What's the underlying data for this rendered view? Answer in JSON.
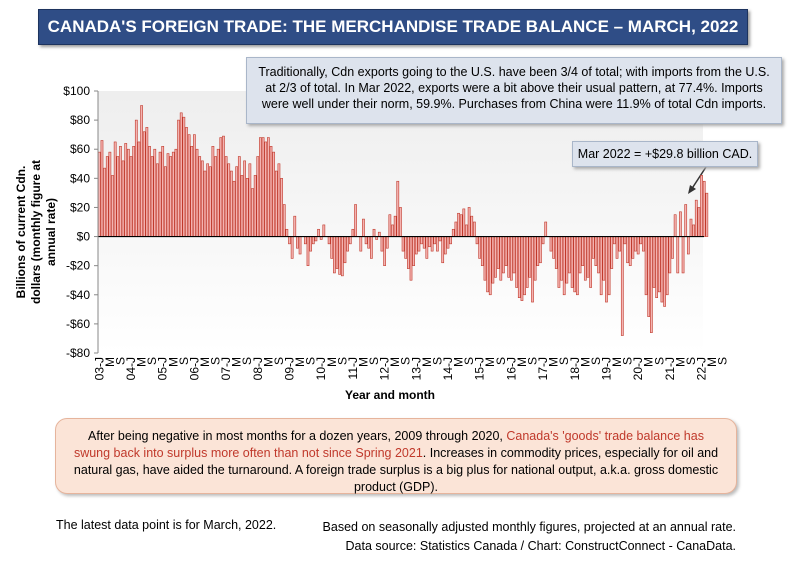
{
  "title": "CANADA'S FOREIGN TRADE: THE MERCHANDISE TRADE BALANCE – MARCH, 2022",
  "annotation": "Traditionally, Cdn exports going to the U.S. have been 3/4 of total; with imports from the U.S. at 2/3 of total. In Mar 2022, exports were a bit above their usual pattern, at 77.4%. Imports were well under their norm, 59.9%. Purchases from China were 11.9% of total Cdn imports.",
  "callout": "Mar 2022 = +$29.8 billion CAD.",
  "chart_data": {
    "type": "bar",
    "ylabel": "Billions of current Cdn. dollars (monthly figure at annual rate)",
    "xlabel": "Year and month",
    "categories": [
      "03-J",
      null,
      null,
      null,
      "M",
      null,
      null,
      null,
      "S",
      null,
      null,
      null,
      "04-J",
      null,
      null,
      null,
      "M",
      null,
      null,
      null,
      "S",
      null,
      null,
      null,
      "05-J",
      null,
      null,
      null,
      "M",
      null,
      null,
      null,
      "S",
      null,
      null,
      null,
      "06-J",
      null,
      null,
      null,
      "M",
      null,
      null,
      null,
      "S",
      null,
      null,
      null,
      "07-J",
      null,
      null,
      null,
      "M",
      null,
      null,
      null,
      "S",
      null,
      null,
      null,
      "08-J",
      null,
      null,
      null,
      "M",
      null,
      null,
      null,
      "S",
      null,
      null,
      null,
      "09-J",
      null,
      null,
      null,
      "M",
      null,
      null,
      null,
      "S",
      null,
      null,
      null,
      "10-J",
      null,
      null,
      null,
      "M",
      null,
      null,
      null,
      "S",
      null,
      null,
      null,
      "11-J",
      null,
      null,
      null,
      "M",
      null,
      null,
      null,
      "S",
      null,
      null,
      null,
      "12-J",
      null,
      null,
      null,
      "M",
      null,
      null,
      null,
      "S",
      null,
      null,
      null,
      "13-J",
      null,
      null,
      null,
      "M",
      null,
      null,
      null,
      "S",
      null,
      null,
      null,
      "14-J",
      null,
      null,
      null,
      "M",
      null,
      null,
      null,
      "S",
      null,
      null,
      null,
      "15-J",
      null,
      null,
      null,
      "M",
      null,
      null,
      null,
      "S",
      null,
      null,
      null,
      "16-J",
      null,
      null,
      null,
      "M",
      null,
      null,
      null,
      "S",
      null,
      null,
      null,
      "17-J",
      null,
      null,
      null,
      "M",
      null,
      null,
      null,
      "S",
      null,
      null,
      null,
      "18-J",
      null,
      null,
      null,
      "M",
      null,
      null,
      null,
      "S",
      null,
      null,
      null,
      "19-J",
      null,
      null,
      null,
      "M",
      null,
      null,
      null,
      "S",
      null,
      null,
      null,
      "20-J",
      null,
      null,
      null,
      "M",
      null,
      null,
      null,
      "S",
      null,
      null,
      null,
      "21-J",
      null,
      null,
      null,
      "M",
      null,
      null,
      null,
      "S",
      null,
      null,
      null,
      "22-J",
      null,
      null,
      null,
      "M",
      null,
      null,
      null,
      "S"
    ],
    "values": [
      58,
      66,
      47,
      55,
      58,
      42,
      65,
      55,
      62,
      52,
      64,
      60,
      55,
      62,
      80,
      65,
      90,
      72,
      75,
      62,
      55,
      60,
      50,
      58,
      62,
      48,
      57,
      55,
      58,
      60,
      80,
      85,
      82,
      75,
      70,
      62,
      70,
      60,
      55,
      52,
      45,
      50,
      48,
      62,
      55,
      60,
      68,
      69,
      55,
      50,
      45,
      38,
      48,
      55,
      42,
      52,
      40,
      50,
      33,
      42,
      55,
      68,
      68,
      65,
      68,
      62,
      58,
      45,
      50,
      40,
      22,
      5,
      -5,
      -15,
      14,
      -8,
      -12,
      0,
      -5,
      -20,
      -10,
      -5,
      -3,
      5,
      -2,
      8,
      0,
      -5,
      -15,
      -25,
      -22,
      -26,
      -27,
      -18,
      -10,
      -5,
      5,
      22,
      0,
      -10,
      12,
      -5,
      -8,
      -15,
      5,
      -2,
      3,
      -10,
      -20,
      -8,
      15,
      8,
      14,
      38,
      20,
      -10,
      -15,
      -22,
      -30,
      -20,
      -12,
      -10,
      -5,
      -8,
      -15,
      -7,
      -10,
      -5,
      -10,
      -3,
      -18,
      -12,
      -8,
      -5,
      5,
      10,
      16,
      15,
      19,
      8,
      20,
      14,
      10,
      -5,
      -15,
      -20,
      -30,
      -38,
      -40,
      -32,
      -28,
      -22,
      -30,
      -25,
      -20,
      -28,
      -30,
      -25,
      -35,
      -42,
      -44,
      -40,
      -35,
      -28,
      -45,
      -30,
      -20,
      -18,
      -5,
      10,
      0,
      -10,
      -15,
      -22,
      -35,
      -30,
      -40,
      -32,
      -25,
      -35,
      -38,
      -40,
      -25,
      -20,
      -30,
      -28,
      -35,
      -15,
      -20,
      -25,
      -40,
      -30,
      -45,
      -40,
      -22,
      -5,
      -15,
      -10,
      -68,
      -5,
      -18,
      -20,
      -15,
      -10,
      -12,
      -5,
      -10,
      -40,
      -55,
      -66,
      -35,
      -42,
      -38,
      -45,
      -48,
      -40,
      -25,
      -15,
      15,
      -25,
      17,
      -25,
      22,
      -12,
      12,
      8,
      25,
      20,
      42,
      38,
      29.8,
      null,
      null,
      null,
      null,
      null,
      null
    ],
    "color": "#f4b3b1",
    "edge_color": "#c0392b",
    "ylim": [
      -80,
      100
    ],
    "yticks": [
      {
        "value": -80,
        "label": "-$80"
      },
      {
        "value": -60,
        "label": "-$60"
      },
      {
        "value": -40,
        "label": "-$40"
      },
      {
        "value": -20,
        "label": "-$20"
      },
      {
        "value": 0,
        "label": "$0"
      },
      {
        "value": 20,
        "label": "$20"
      },
      {
        "value": 40,
        "label": "$40"
      },
      {
        "value": 60,
        "label": "$60"
      },
      {
        "value": 80,
        "label": "$80"
      },
      {
        "value": 100,
        "label": "$100"
      }
    ],
    "grid": false
  },
  "summary": {
    "before": "After being negative in most months for a dozen years, 2009 through 2020, ",
    "highlight": "Canada's 'goods' trade balance has swung back into surplus more often than not since Spring 2021",
    "after": ". Increases in commodity prices, especially for oil and natural gas, have aided the turnaround. A foreign trade surplus is a big plus for national output, a.k.a. gross domestic product (GDP)."
  },
  "footer": {
    "left": "The latest data point is for March, 2022.",
    "right": [
      "Based on seasonally adjusted monthly figures, projected at an annual rate.",
      "Data source: Statistics Canada / Chart: ConstructConnect - CanaData."
    ]
  }
}
